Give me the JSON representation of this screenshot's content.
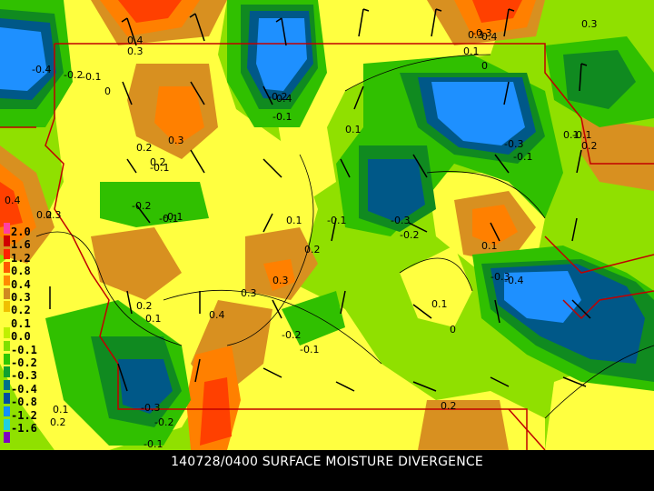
{
  "caption": "140728/0400 SURFACE MOISTURE DIVERGENCE",
  "legend": [
    {
      "label": "2.0",
      "color": "#ff40a0"
    },
    {
      "label": "1.6",
      "color": "#d00000"
    },
    {
      "label": "1.2",
      "color": "#ff2000"
    },
    {
      "label": "0.8",
      "color": "#ff5a00"
    },
    {
      "label": "0.4",
      "color": "#ff8c00"
    },
    {
      "label": "0.3",
      "color": "#d08a20"
    },
    {
      "label": "0.2",
      "color": "#f0c000"
    },
    {
      "label": "0.1",
      "color": "#ffff40"
    },
    {
      "label": "0.0",
      "color": "#c0f000"
    },
    {
      "label": "-0.1",
      "color": "#80e000"
    },
    {
      "label": "-0.2",
      "color": "#30c800"
    },
    {
      "label": "-0.3",
      "color": "#10a030"
    },
    {
      "label": "-0.4",
      "color": "#00708a"
    },
    {
      "label": "-0.8",
      "color": "#0050a0"
    },
    {
      "label": "-1.2",
      "color": "#1090ff"
    },
    {
      "label": "-1.6",
      "color": "#20d0e0"
    },
    {
      "label": "",
      "color": "#8000c0"
    }
  ],
  "contour_labels": [
    "0.4",
    "0.3",
    "-0.4",
    "-0.2",
    "-0.1",
    "0",
    "0.3",
    "-0.3",
    "-0.2",
    "-0.1",
    "-0.4",
    "0.3",
    "0.2",
    "0.2",
    "-0.1",
    "0.1",
    "-0.1",
    "0.3",
    "0.4",
    "0.1",
    "0",
    "-0.1",
    "0.4",
    "0.3",
    "0.2",
    "-0.2",
    "-0.1",
    "0.1",
    "0.2",
    "-0.3",
    "-0.2",
    "0.1",
    "-0.1",
    "0.3",
    "0.2",
    "-0.3",
    "0.2",
    "0.1",
    "0.3",
    "0.4",
    "0.1",
    "-0.3",
    "-0.4",
    "0",
    "-0.2",
    "-0.1",
    "0.1",
    "0.2",
    "-0.3",
    "-0.2",
    "-0.1",
    "0.2",
    "0.1",
    "-0.1"
  ]
}
